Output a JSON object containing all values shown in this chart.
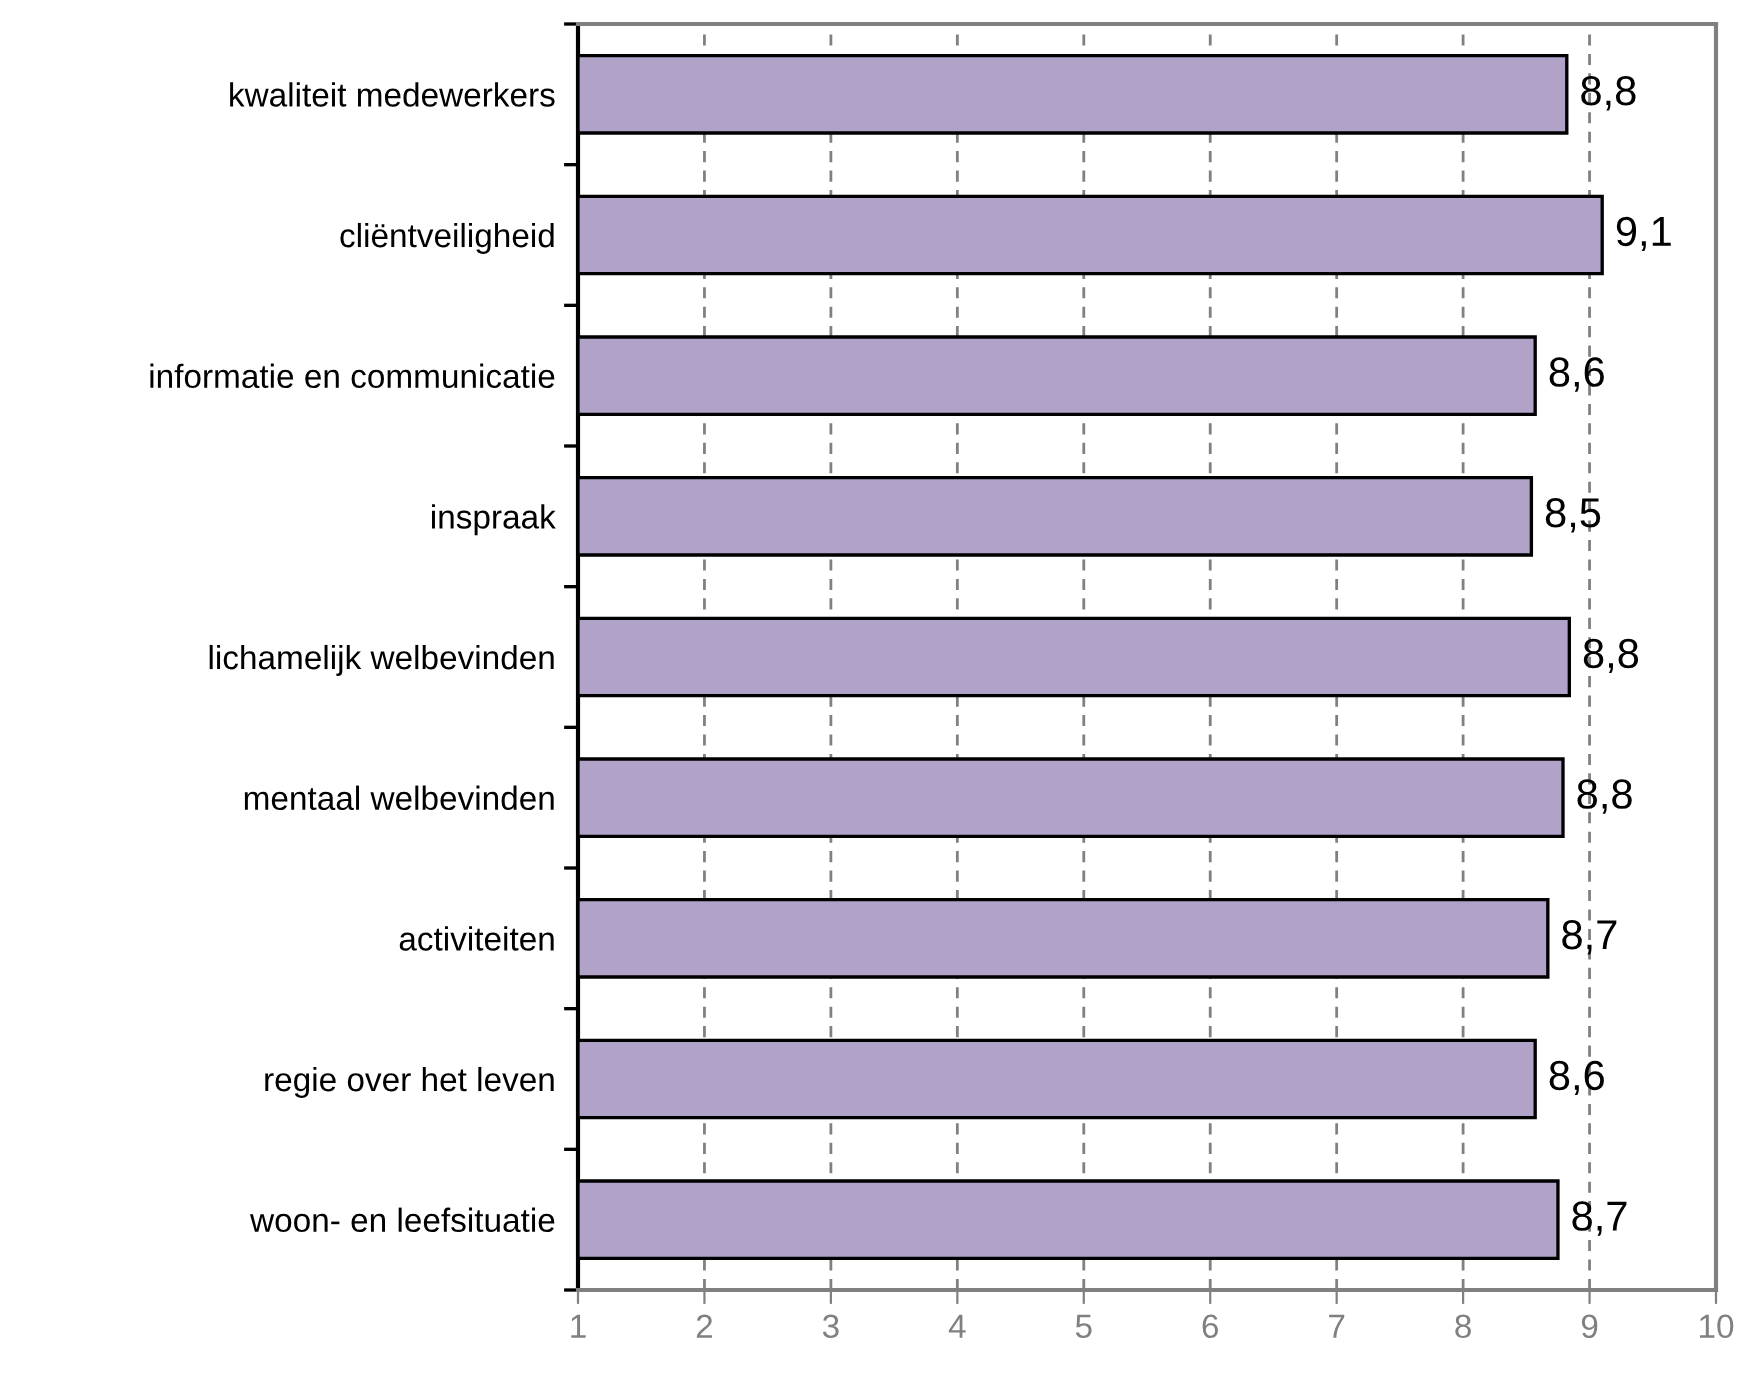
{
  "chart_data": {
    "type": "bar",
    "orientation": "horizontal",
    "categories": [
      "kwaliteit medewerkers",
      "cliëntveiligheid",
      "informatie en communicatie",
      "inspraak",
      "lichamelijk welbevinden",
      "mentaal welbevinden",
      "activiteiten",
      "regie over het leven",
      "woon- en leefsituatie"
    ],
    "values": [
      8.82,
      9.1,
      8.57,
      8.54,
      8.84,
      8.79,
      8.67,
      8.57,
      8.75
    ],
    "value_labels": [
      "8,8",
      "9,1",
      "8,6",
      "8,5",
      "8,8",
      "8,8",
      "8,7",
      "8,6",
      "8,7"
    ],
    "color": "#b1a3c8",
    "xlim": [
      1,
      10
    ],
    "xticks": [
      1,
      2,
      3,
      4,
      5,
      6,
      7,
      8,
      9,
      10
    ],
    "grid": "x"
  }
}
